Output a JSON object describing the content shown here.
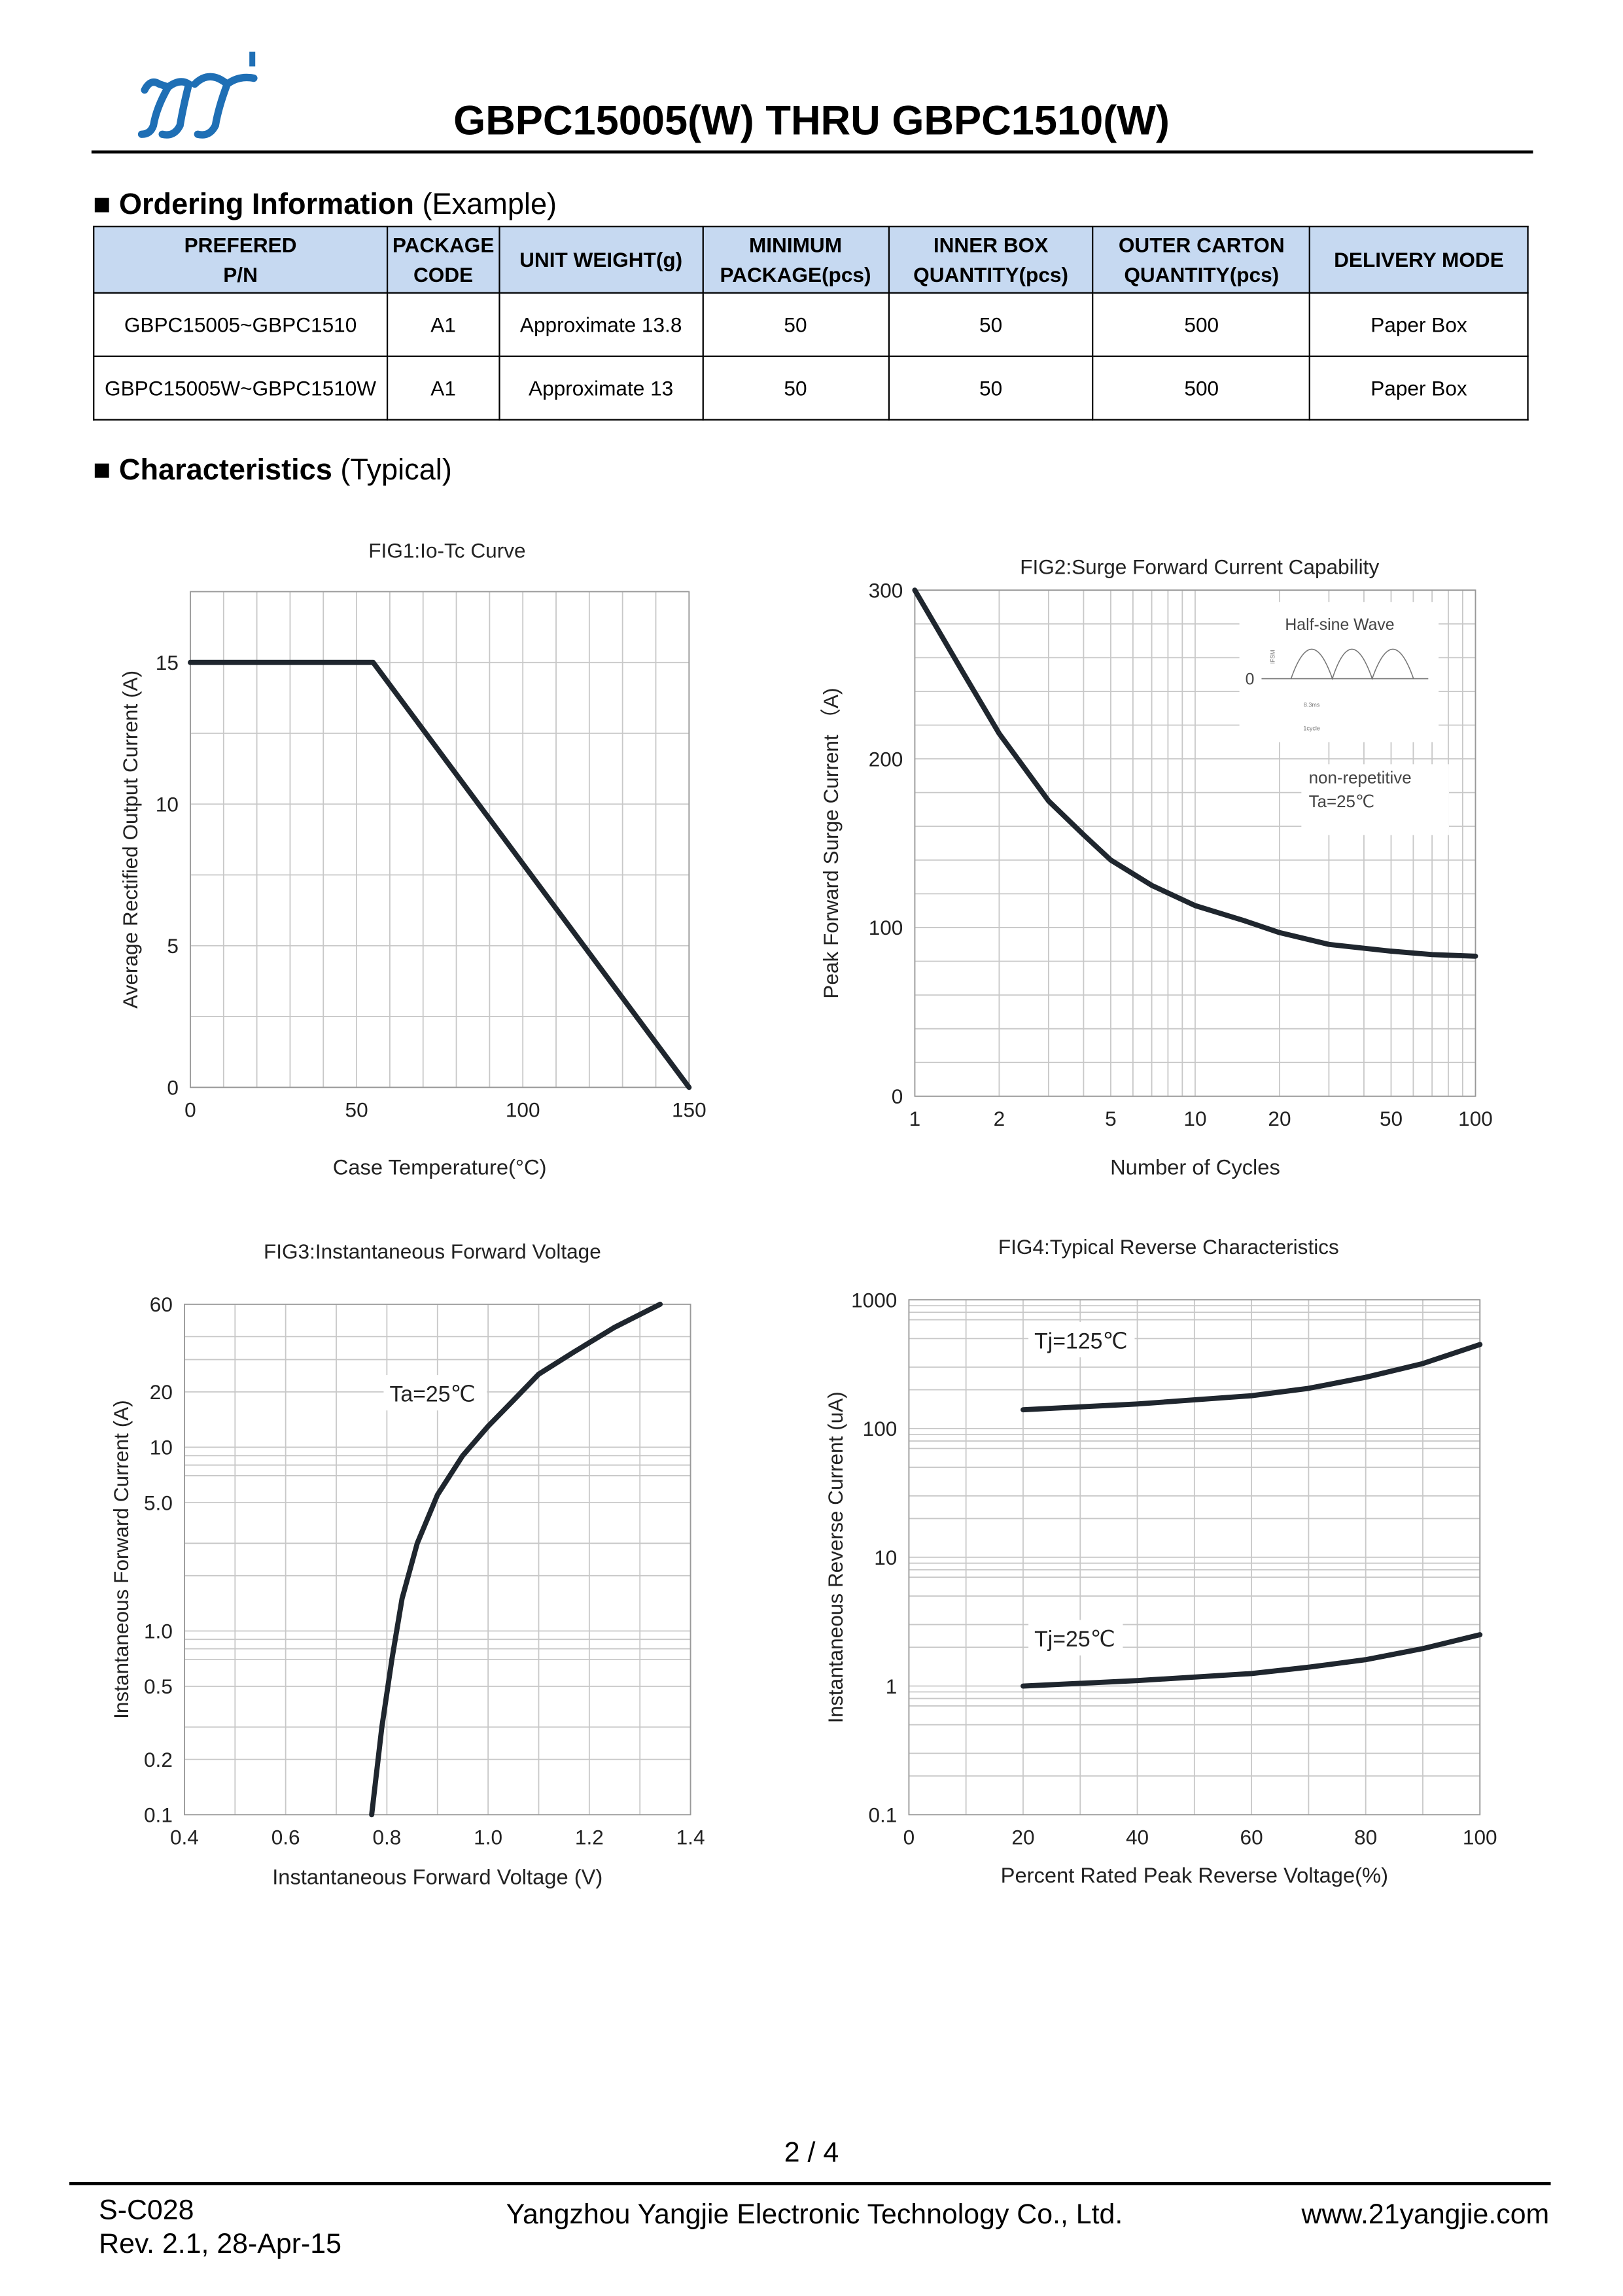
{
  "header": {
    "title": "GBPC15005(W) THRU GBPC1510(W)",
    "logo_text": "yj"
  },
  "ordering": {
    "heading_bold": "Ordering Information",
    "heading_rest": " (Example)",
    "columns": [
      [
        "PREFERED",
        "P/N"
      ],
      [
        "PACKAGE",
        "CODE"
      ],
      [
        "UNIT WEIGHT(g)"
      ],
      [
        "MINIMUM",
        "PACKAGE(pcs)"
      ],
      [
        "INNER BOX",
        "QUANTITY(pcs)"
      ],
      [
        "OUTER CARTON",
        "QUANTITY(pcs)"
      ],
      [
        "DELIVERY MODE"
      ]
    ],
    "rows": [
      [
        "GBPC15005~GBPC1510",
        "A1",
        "Approximate 13.8",
        "50",
        "50",
        "500",
        "Paper Box"
      ],
      [
        "GBPC15005W~GBPC1510W",
        "A1",
        "Approximate 13",
        "50",
        "50",
        "500",
        "Paper Box"
      ]
    ]
  },
  "characteristics": {
    "heading_bold": "Characteristics",
    "heading_rest": " (Typical)"
  },
  "chart_data": [
    {
      "type": "line",
      "title": "FIG1:Io-Tc Curve",
      "xlabel": "Case Temperature(°C)",
      "ylabel": "Average Rectified Output Current (A)",
      "xscale": "linear",
      "yscale": "linear",
      "xlim": [
        0,
        150
      ],
      "ylim": [
        0,
        17.5
      ],
      "xticks": [
        0,
        50,
        100,
        150
      ],
      "yticks": [
        0,
        5,
        10,
        15
      ],
      "xgrid": [
        0,
        10,
        20,
        30,
        40,
        50,
        60,
        70,
        80,
        90,
        100,
        110,
        120,
        130,
        140,
        150
      ],
      "ygrid": [
        0,
        2.5,
        5,
        7.5,
        10,
        12.5,
        15,
        17.5
      ],
      "series": [
        {
          "name": "Io",
          "x": [
            0,
            55,
            150
          ],
          "y": [
            15,
            15,
            0
          ]
        }
      ],
      "annotations": []
    },
    {
      "type": "line",
      "title": "FIG2:Surge Forward Current Capability",
      "xlabel": "Number of Cycles",
      "ylabel": "Peak Forward Surge Current （A)",
      "xscale": "log",
      "yscale": "linear",
      "xlim": [
        1,
        100
      ],
      "ylim": [
        0,
        300
      ],
      "xticks": [
        1,
        2,
        5,
        10,
        20,
        50,
        100
      ],
      "yticks": [
        0,
        100,
        200,
        300
      ],
      "xgrid": [
        1,
        2,
        3,
        4,
        5,
        6,
        7,
        8,
        9,
        10,
        20,
        30,
        40,
        50,
        60,
        70,
        80,
        90,
        100
      ],
      "ygrid": [
        0,
        20,
        40,
        60,
        80,
        100,
        120,
        140,
        160,
        180,
        200,
        220,
        240,
        260,
        280,
        300
      ],
      "series": [
        {
          "name": "IFSM",
          "x": [
            1,
            1.5,
            2,
            3,
            4,
            5,
            7,
            10,
            15,
            20,
            30,
            50,
            70,
            100
          ],
          "y": [
            300,
            250,
            215,
            175,
            155,
            140,
            125,
            113,
            104,
            97,
            90,
            86,
            84,
            83
          ]
        }
      ],
      "inset": {
        "title": "Half-sine Wave",
        "zero": "0",
        "ifsm": "IFSM",
        "period": "8.3ms",
        "cycle": "1cycle"
      },
      "annotations": [
        "non-repetitive",
        "Ta=25℃"
      ]
    },
    {
      "type": "line",
      "title": "FIG3:Instantaneous Forward Voltage",
      "xlabel": "Instantaneous Forward Voltage (V)",
      "ylabel": "Instantaneous Forward Current (A)",
      "xscale": "linear",
      "yscale": "log",
      "xlim": [
        0.4,
        1.4
      ],
      "ylim": [
        0.1,
        60
      ],
      "xticks": [
        0.4,
        0.6,
        0.8,
        1.0,
        1.2,
        1.4
      ],
      "xticklabels": [
        "0.4",
        "0.6",
        "0.8",
        "1.0",
        "1.2",
        "1.4"
      ],
      "yticks": [
        0.1,
        0.2,
        0.5,
        1,
        5,
        10,
        20,
        60
      ],
      "yticklabels": [
        "0.1",
        "0.2",
        "0.5",
        "1.0",
        "5.0",
        "10",
        "20",
        "60"
      ],
      "xgrid": [
        0.4,
        0.5,
        0.6,
        0.7,
        0.8,
        0.9,
        1.0,
        1.1,
        1.2,
        1.3,
        1.4
      ],
      "ygrid": [
        0.1,
        0.2,
        0.3,
        0.5,
        0.7,
        0.8,
        0.9,
        1,
        2,
        3,
        5,
        7,
        8,
        9,
        10,
        20,
        30,
        40,
        60
      ],
      "series": [
        {
          "name": "Ta=25℃",
          "x": [
            0.77,
            0.79,
            0.81,
            0.83,
            0.86,
            0.9,
            0.95,
            1.0,
            1.05,
            1.1,
            1.17,
            1.25,
            1.34
          ],
          "y": [
            0.1,
            0.3,
            0.7,
            1.5,
            3,
            5.5,
            9,
            13,
            18,
            25,
            33,
            45,
            60
          ]
        }
      ],
      "annotations": [
        "Ta=25℃"
      ]
    },
    {
      "type": "line",
      "title": "FIG4:Typical Reverse Characteristics",
      "xlabel": "Percent Rated Peak Reverse Voltage(%)",
      "ylabel": "Instantaneous Reverse Current (uA)",
      "xscale": "linear",
      "yscale": "log",
      "xlim": [
        0,
        100
      ],
      "ylim": [
        0.1,
        1000
      ],
      "xticks": [
        0,
        20,
        40,
        60,
        80,
        100
      ],
      "yticks": [
        0.1,
        1,
        10,
        100,
        1000
      ],
      "xgrid": [
        0,
        10,
        20,
        30,
        40,
        50,
        60,
        70,
        80,
        90,
        100
      ],
      "ygrid": [
        0.1,
        0.2,
        0.3,
        0.5,
        0.7,
        0.8,
        0.9,
        1,
        2,
        3,
        5,
        7,
        8,
        9,
        10,
        20,
        30,
        50,
        70,
        80,
        90,
        100,
        200,
        300,
        500,
        700,
        800,
        900,
        1000
      ],
      "series": [
        {
          "name": "Tj=125℃",
          "x": [
            20,
            40,
            60,
            70,
            80,
            90,
            100
          ],
          "y": [
            140,
            155,
            180,
            205,
            250,
            320,
            450
          ]
        },
        {
          "name": "Tj=25℃",
          "x": [
            20,
            40,
            60,
            70,
            80,
            90,
            100
          ],
          "y": [
            1.0,
            1.1,
            1.25,
            1.4,
            1.6,
            1.95,
            2.5
          ]
        }
      ],
      "annotations": [
        "Tj=125℃",
        "Tj=25℃"
      ]
    }
  ],
  "footer": {
    "page": "2 / 4",
    "doc_code": "S-C028",
    "revision": "Rev. 2.1, 28-Apr-15",
    "company": "Yangzhou Yangjie Electronic Technology Co., Ltd.",
    "website": "www.21yangjie.com"
  },
  "colors": {
    "logo": "#1f6fb5",
    "header_fill": "#c6d9f1",
    "curve": "#1f262e",
    "grid": "#c8c8c8"
  }
}
